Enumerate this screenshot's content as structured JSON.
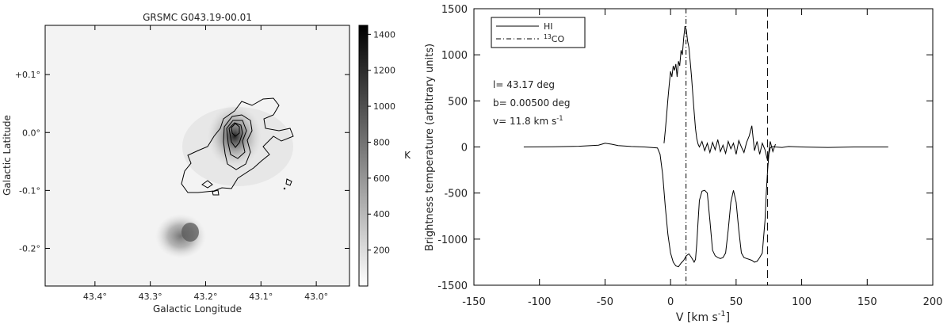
{
  "chart_data": [
    {
      "type": "heatmap",
      "title": "GRSMC G043.19-00.01",
      "xlabel": "Galactic Longitude",
      "ylabel": "Galactic Latitude",
      "xlim": [
        43.49,
        42.94
      ],
      "ylim": [
        -0.265,
        0.185
      ],
      "xticks": [
        {
          "value": 43.4,
          "label": "43.4°"
        },
        {
          "value": 43.3,
          "label": "43.3°"
        },
        {
          "value": 43.2,
          "label": "43.2°"
        },
        {
          "value": 43.1,
          "label": "43.1°"
        },
        {
          "value": 43.0,
          "label": "43.0°"
        }
      ],
      "yticks": [
        {
          "value": 0.1,
          "label": "+0.1°"
        },
        {
          "value": 0.0,
          "label": "0.0°"
        },
        {
          "value": -0.1,
          "label": "-0.1°"
        },
        {
          "value": -0.2,
          "label": "-0.2°"
        }
      ],
      "colorbar": {
        "label": "K",
        "range": [
          0,
          1450
        ],
        "ticks": [
          200,
          400,
          600,
          800,
          1000,
          1200,
          1400
        ],
        "colormap": "white-to-black"
      },
      "emission_peaks": [
        {
          "l": 43.17,
          "b": 0.005,
          "value": 1450
        },
        {
          "l": 43.245,
          "b": -0.21,
          "value": 650
        }
      ]
    },
    {
      "type": "line",
      "xlabel": "V [km s",
      "xlabel_sup": "-1",
      "xlabel_tail": "]",
      "ylabel": "Brightness temperature (arbitrary units)",
      "xlim": [
        -150,
        200
      ],
      "ylim": [
        -1500,
        1500
      ],
      "xticks": [
        -150,
        -100,
        -50,
        0,
        50,
        100,
        150,
        200
      ],
      "yticks": [
        1500,
        1000,
        500,
        0,
        -500,
        -1000,
        -1500
      ],
      "legend_position": "top-left",
      "annotations": {
        "l_text": "l= 43.17 deg",
        "b_text": "b= 0.00500 deg",
        "v_text_pre": "v= 11.8 km s",
        "v_text_sup": "-1"
      },
      "vlines": [
        {
          "x": 11.8,
          "style": "dash-dot"
        },
        {
          "x": 74,
          "style": "dashed"
        }
      ],
      "series": [
        {
          "name": "HI",
          "legend_label": "HI",
          "style": "solid",
          "x": [
            -112,
            -90,
            -70,
            -55,
            -50,
            -45,
            -40,
            -30,
            -20,
            -10,
            -8,
            -6,
            -4,
            -2,
            0,
            2,
            4,
            6,
            8,
            10,
            12,
            14,
            16,
            18,
            19,
            20,
            21,
            22,
            24,
            26,
            28,
            30,
            32,
            34,
            36,
            38,
            40,
            42,
            44,
            46,
            48,
            50,
            52,
            54,
            56,
            58,
            60,
            62,
            64,
            66,
            68,
            70,
            72,
            73,
            74,
            75,
            76,
            77,
            78,
            80,
            85,
            90,
            100,
            120,
            140,
            160,
            166
          ],
          "y": [
            0,
            2,
            8,
            20,
            40,
            30,
            15,
            5,
            0,
            -10,
            -80,
            -300,
            -650,
            -950,
            -1150,
            -1250,
            -1290,
            -1300,
            -1260,
            -1230,
            -1180,
            -1160,
            -1200,
            -1250,
            -1220,
            -1050,
            -800,
            -580,
            -480,
            -470,
            -500,
            -800,
            -1120,
            -1180,
            -1200,
            -1210,
            -1200,
            -1150,
            -900,
            -600,
            -470,
            -600,
            -900,
            -1150,
            -1200,
            -1210,
            -1220,
            -1230,
            -1250,
            -1240,
            -1200,
            -1150,
            -800,
            -500,
            -250,
            -80,
            -10,
            0,
            5,
            0,
            -5,
            5,
            0,
            -5,
            0,
            0,
            0
          ]
        },
        {
          "name": "13CO",
          "legend_label_sup": "13",
          "legend_label_main": "CO",
          "style": "dash-dot",
          "x": [
            -5,
            -4,
            -3,
            -2,
            -1,
            0,
            1,
            2,
            3,
            4,
            5,
            6,
            7,
            8,
            9,
            10,
            11,
            12,
            13,
            14,
            15,
            16,
            17,
            18,
            19,
            20,
            21,
            22,
            24,
            26,
            28,
            30,
            32,
            34,
            36,
            38,
            40,
            42,
            44,
            46,
            48,
            50,
            52,
            54,
            56,
            58,
            60,
            62,
            63,
            64,
            66,
            68,
            70,
            72,
            74,
            76,
            78,
            80
          ],
          "y": [
            40,
            180,
            350,
            520,
            680,
            820,
            760,
            880,
            830,
            900,
            760,
            930,
            880,
            1050,
            1000,
            1180,
            1310,
            1270,
            1150,
            1080,
            920,
            760,
            560,
            380,
            200,
            90,
            30,
            0,
            60,
            -40,
            40,
            -60,
            50,
            -30,
            80,
            -50,
            20,
            -70,
            60,
            -20,
            40,
            -80,
            70,
            0,
            -60,
            50,
            120,
            230,
            90,
            -40,
            60,
            -80,
            40,
            -30,
            -150,
            60,
            -50,
            30
          ]
        }
      ]
    }
  ]
}
